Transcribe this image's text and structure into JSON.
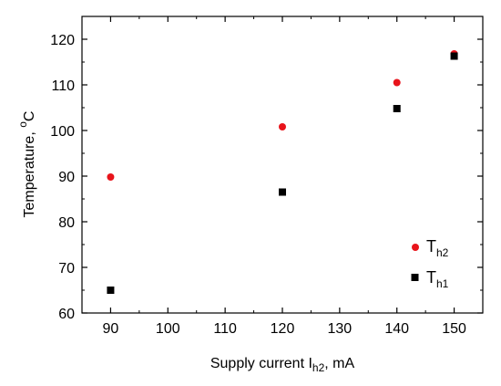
{
  "chart_data": {
    "type": "scatter",
    "x": [
      90,
      120,
      140,
      150
    ],
    "series": [
      {
        "name": "T_h2",
        "label_main": "T",
        "label_sub": "h2",
        "color": "#e8141b",
        "marker": "circle",
        "values": [
          89.8,
          100.8,
          110.5,
          116.8
        ]
      },
      {
        "name": "T_h1",
        "label_main": "T",
        "label_sub": "h1",
        "color": "#000000",
        "marker": "square",
        "values": [
          65.0,
          86.5,
          104.8,
          116.3
        ]
      }
    ],
    "xlabel_main": "Supply current I",
    "xlabel_sub": "h2",
    "xlabel_tail": ", mA",
    "ylabel_main": "Temperature, ",
    "ylabel_sup": "o",
    "ylabel_tail": "C",
    "xlim": [
      85,
      155
    ],
    "ylim": [
      60,
      125
    ],
    "xticks": [
      90,
      100,
      110,
      120,
      130,
      140,
      150
    ],
    "yticks": [
      60,
      70,
      80,
      90,
      100,
      110,
      120
    ],
    "grid": false,
    "legend_position": "bottom-right"
  }
}
